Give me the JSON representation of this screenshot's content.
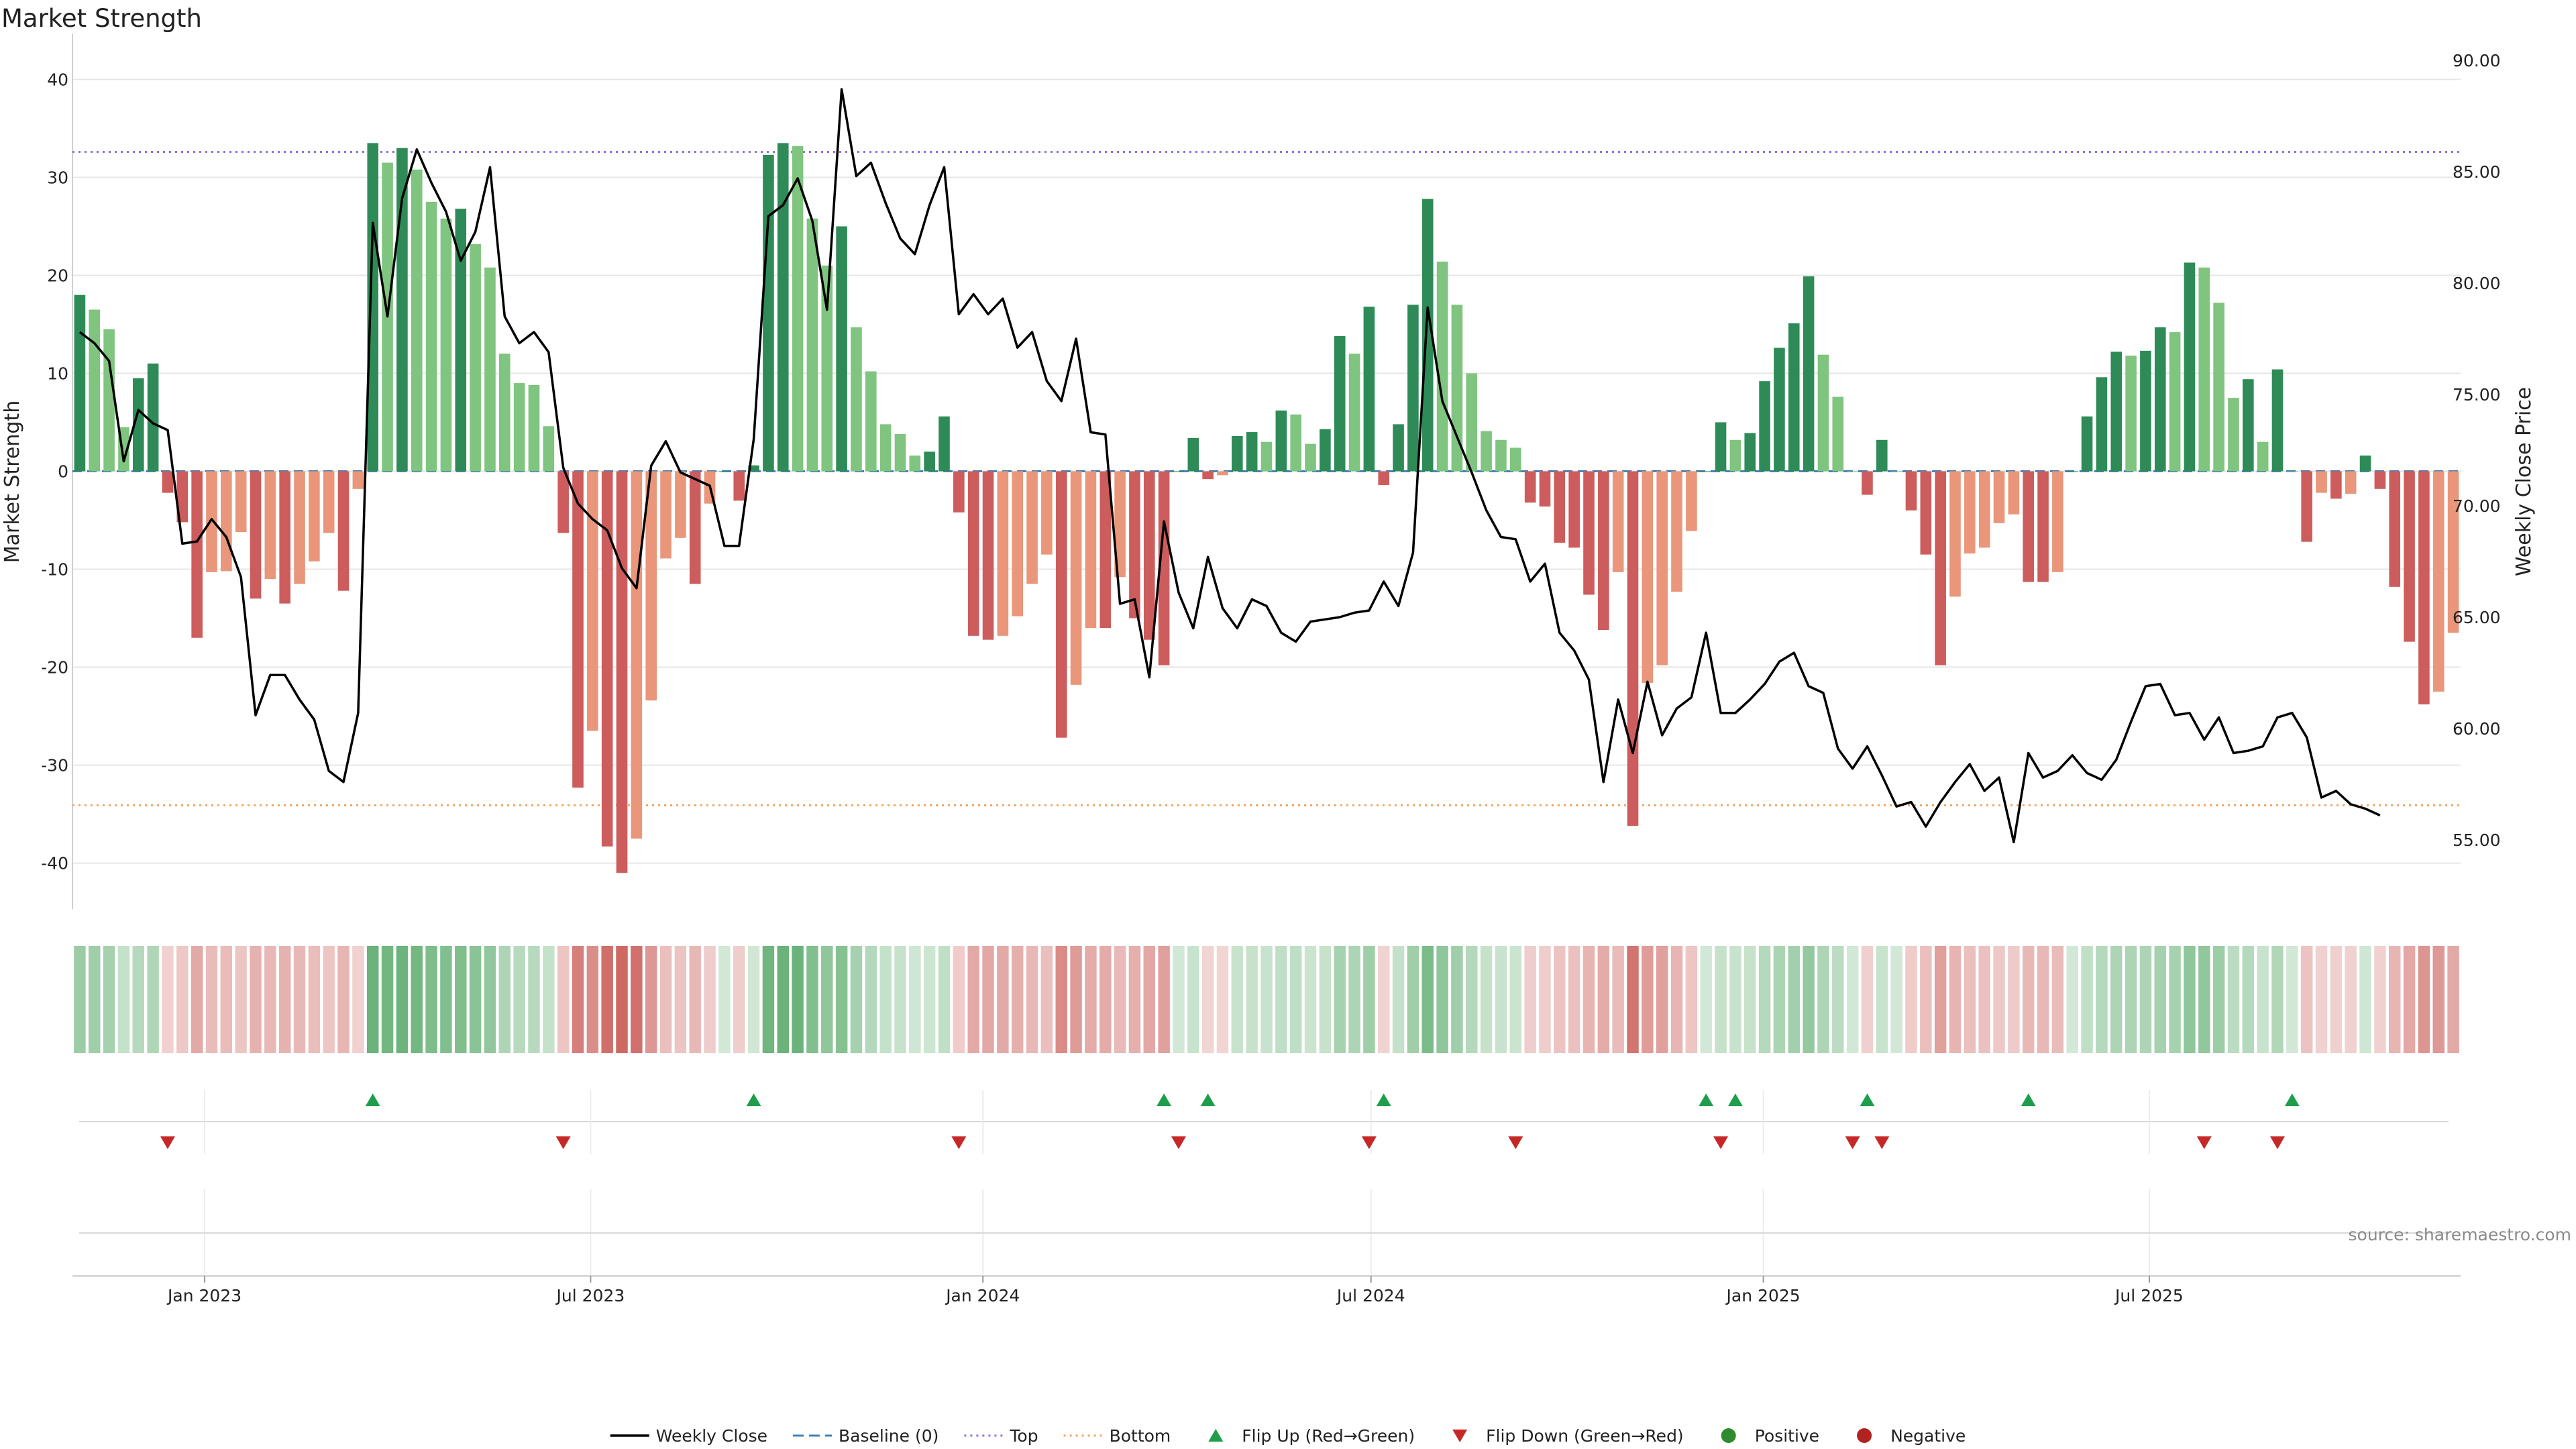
{
  "chart_data": {
    "type": "bar",
    "title": "Market Strength",
    "ylabel": "Market Strength",
    "y2label": "Weekly Close Price",
    "ylim": [
      -44,
      44
    ],
    "y2lim": [
      52.2,
      90.9
    ],
    "yticks": [
      40,
      30,
      20,
      10,
      0,
      -10,
      -20,
      -30,
      -40
    ],
    "y2ticks": [
      "90.00",
      "85.00",
      "80.00",
      "75.00",
      "70.00",
      "65.00",
      "60.00",
      "55.00"
    ],
    "x_start": "2022-10-31",
    "x_end": "2025-11-24",
    "xticks": [
      {
        "label": "Jan 2023",
        "date": "2023-01-01"
      },
      {
        "label": "Jul 2023",
        "date": "2023-07-01"
      },
      {
        "label": "Jan 2024",
        "date": "2024-01-01"
      },
      {
        "label": "Jul 2024",
        "date": "2024-07-01"
      },
      {
        "label": "Jan 2025",
        "date": "2025-01-01"
      },
      {
        "label": "Jul 2025",
        "date": "2025-07-01"
      }
    ],
    "strength": [
      18,
      16.5,
      14.5,
      4.5,
      9.5,
      11,
      -2.2,
      -5.2,
      -17,
      -10.3,
      -10.2,
      -6.2,
      -13,
      -11,
      -13.5,
      -11.5,
      -9.2,
      -6.3,
      -12.2,
      -1.8,
      33.5,
      31.5,
      33,
      30.8,
      27.5,
      25.8,
      26.8,
      23.2,
      20.8,
      12,
      9,
      8.8,
      4.6,
      -6.3,
      -32.3,
      -26.5,
      -38.3,
      -41,
      -37.5,
      -23.4,
      -8.9,
      -6.8,
      -11.5,
      -3.3,
      0,
      -3,
      0.6,
      32.3,
      33.5,
      33.2,
      25.8,
      21,
      25,
      14.7,
      10.2,
      4.8,
      3.8,
      1.6,
      2,
      5.6,
      -4.2,
      -16.8,
      -17.2,
      -16.8,
      -14.8,
      -11.5,
      -8.5,
      -27.2,
      -21.8,
      -16,
      -16,
      -10.8,
      -15,
      -17.2,
      -19.8,
      0,
      3.4,
      -0.8,
      -0.4,
      3.6,
      4,
      3,
      6.2,
      5.8,
      2.8,
      4.3,
      13.8,
      12,
      16.8,
      -1.4,
      4.8,
      17,
      27.8,
      21.4,
      17,
      10,
      4.1,
      3.2,
      2.4,
      -3.2,
      -3.6,
      -7.3,
      -7.8,
      -12.6,
      -16.2,
      -10.3,
      -36.2,
      -21.6,
      -19.8,
      -12.3,
      -6.1,
      0,
      5,
      3.2,
      3.9,
      9.2,
      12.6,
      15.1,
      19.9,
      11.9,
      7.6,
      0,
      -2.4,
      3.2,
      0,
      -4,
      -8.5,
      -19.8,
      -12.8,
      -8.4,
      -7.8,
      -5.3,
      -4.4,
      -11.3,
      -11.3,
      -10.3,
      0,
      5.6,
      9.6,
      12.2,
      11.8,
      12.3,
      14.7,
      14.2,
      21.3,
      20.8,
      17.2,
      7.5,
      9.4,
      3,
      10.4,
      0,
      -7.2,
      -2.2,
      -2.8,
      -2.3,
      1.6,
      -1.8,
      -11.8,
      -17.4,
      -23.8,
      -22.5,
      -16.5
    ],
    "close": [
      77.8,
      77.3,
      76.5,
      72,
      74.3,
      73.7,
      73.4,
      68.3,
      68.4,
      69.4,
      68.6,
      66.8,
      60.6,
      62.4,
      62.4,
      61.3,
      60.4,
      58.1,
      57.6,
      60.7,
      82.7,
      78.5,
      83.8,
      86,
      84.5,
      83.2,
      81,
      82.3,
      85.2,
      78.5,
      77.3,
      77.8,
      76.9,
      71.7,
      70.1,
      69.4,
      68.9,
      67.2,
      66.3,
      71.8,
      72.9,
      71.5,
      71.2,
      70.9,
      68.2,
      68.2,
      73,
      83,
      83.5,
      84.7,
      82.8,
      78.8,
      88.7,
      84.8,
      85.4,
      83.6,
      82,
      81.3,
      83.5,
      85.2,
      78.6,
      79.5,
      78.6,
      79.3,
      77.1,
      77.8,
      75.6,
      74.7,
      77.5,
      73.3,
      73.2,
      65.6,
      65.8,
      62.3,
      69.3,
      66.1,
      64.5,
      67.7,
      65.4,
      64.5,
      65.8,
      65.5,
      64.3,
      63.9,
      64.8,
      64.9,
      65,
      65.2,
      65.3,
      66.6,
      65.5,
      67.9,
      78.9,
      74.7,
      73.1,
      71.5,
      69.8,
      68.6,
      68.5,
      66.6,
      67.4,
      64.3,
      63.5,
      62.2,
      57.6,
      61.3,
      58.9,
      62.1,
      59.7,
      60.9,
      61.4,
      64.3,
      60.7,
      60.7,
      61.3,
      62,
      63,
      63.4,
      61.9,
      61.6,
      59.1,
      58.2,
      59.2,
      57.9,
      56.5,
      56.7,
      55.6,
      56.7,
      57.6,
      58.4,
      57.2,
      57.8,
      54.9,
      58.9,
      57.8,
      58.1,
      58.8,
      58,
      57.7,
      58.6,
      60.3,
      61.9,
      62,
      60.6,
      60.7,
      59.5,
      60.5,
      58.9,
      59,
      59.2,
      60.5,
      60.7,
      59.6,
      56.9,
      57.2,
      56.6,
      56.4,
      56.1
    ],
    "top_line": 32.6,
    "bottom_line": -34.1,
    "flip_up_weeks": [
      20,
      46,
      74,
      77,
      89,
      111,
      113,
      122,
      133,
      151
    ],
    "flip_down_weeks": [
      6,
      33,
      60,
      75,
      88,
      98,
      112,
      121,
      123,
      145,
      150
    ],
    "legend": [
      {
        "label": "Weekly Close",
        "kind": "line"
      },
      {
        "label": "Baseline (0)",
        "kind": "dash"
      },
      {
        "label": "Top",
        "kind": "dots-purple"
      },
      {
        "label": "Bottom",
        "kind": "dots-orange"
      },
      {
        "label": "Flip Up (Red→Green)",
        "kind": "tri-up"
      },
      {
        "label": "Flip Down (Green→Red)",
        "kind": "tri-down"
      },
      {
        "label": "Positive",
        "kind": "dot-green"
      },
      {
        "label": "Negative",
        "kind": "dot-red"
      }
    ],
    "legend_placement": "bottom-center",
    "grid": true
  },
  "source": "source: sharemaestro.com",
  "colors": {
    "strong_green": "#2e8b57",
    "light_green": "#7fc47f",
    "strong_red": "#cd5c5c",
    "light_red": "#e9967a",
    "close_line": "#000000",
    "baseline": "#4682b4",
    "top_line": "#9370db",
    "bottom_line": "#f4a460",
    "flip_up": "#1e9e4a",
    "flip_down": "#c62828",
    "positive": "#2e8b2e",
    "negative": "#b22222",
    "grid": "#e6e6e6"
  }
}
